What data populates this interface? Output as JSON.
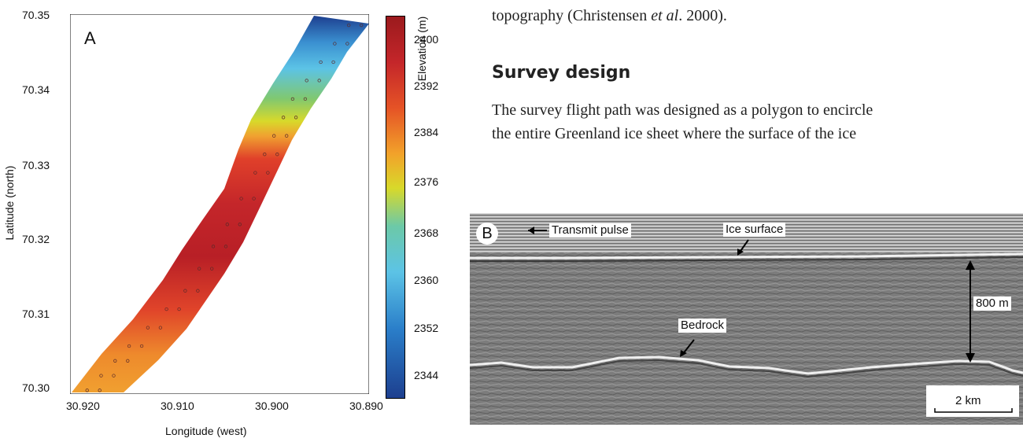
{
  "figure": {
    "panel_a": {
      "label": "A",
      "xlabel": "Longitude (west)",
      "ylabel": "Latitude (north)",
      "x_ticks": [
        "30.920",
        "30.910",
        "30.900",
        "30.890"
      ],
      "y_ticks": [
        "70.35",
        "70.34",
        "70.33",
        "70.32",
        "70.31",
        "70.30"
      ],
      "colorbar_label": "Elevation (m)",
      "colorbar_ticks": [
        "2400",
        "2392",
        "2384",
        "2376",
        "2368",
        "2360",
        "2352",
        "2344"
      ]
    },
    "panel_b": {
      "label": "B",
      "transmit_pulse": "Transmit pulse",
      "ice_surface": "Ice surface",
      "bedrock": "Bedrock",
      "thickness": "800 m",
      "scale": "2 km"
    }
  },
  "text": {
    "top_line": "topography (Christensen et al. 2000).",
    "top_line_pre": "topography (Christensen ",
    "top_line_em": "et al",
    "top_line_post": ". 2000).",
    "heading": "Survey design",
    "para_line1": "The survey flight path was designed as a polygon to encircle",
    "para_line2": "the entire Greenland ice sheet where the surface of the ice"
  },
  "chart_data": {
    "type": "scatter",
    "xlabel": "Longitude (west)",
    "ylabel": "Latitude (north)",
    "xlim": [
      30.922,
      30.89
    ],
    "ylim": [
      70.2985,
      70.35
    ],
    "colorbar_range": [
      2340,
      2405
    ],
    "points": [
      {
        "x": 30.9195,
        "y": 70.299,
        "elev": 2381
      },
      {
        "x": 30.918,
        "y": 70.301,
        "elev": 2385
      },
      {
        "x": 30.9165,
        "y": 70.303,
        "elev": 2388
      },
      {
        "x": 30.915,
        "y": 70.305,
        "elev": 2391
      },
      {
        "x": 30.913,
        "y": 70.3075,
        "elev": 2394
      },
      {
        "x": 30.911,
        "y": 70.31,
        "elev": 2397
      },
      {
        "x": 30.909,
        "y": 70.3125,
        "elev": 2400
      },
      {
        "x": 30.9075,
        "y": 70.3155,
        "elev": 2402
      },
      {
        "x": 30.906,
        "y": 70.3185,
        "elev": 2402
      },
      {
        "x": 30.9045,
        "y": 70.3215,
        "elev": 2400
      },
      {
        "x": 30.903,
        "y": 70.325,
        "elev": 2398
      },
      {
        "x": 30.9015,
        "y": 70.3285,
        "elev": 2395
      },
      {
        "x": 30.9005,
        "y": 70.331,
        "elev": 2389
      },
      {
        "x": 30.8995,
        "y": 70.3335,
        "elev": 2382
      },
      {
        "x": 30.8985,
        "y": 70.336,
        "elev": 2373
      },
      {
        "x": 30.8975,
        "y": 70.3385,
        "elev": 2365
      },
      {
        "x": 30.896,
        "y": 70.341,
        "elev": 2360
      },
      {
        "x": 30.8945,
        "y": 70.3435,
        "elev": 2357
      },
      {
        "x": 30.893,
        "y": 70.346,
        "elev": 2353
      },
      {
        "x": 30.8915,
        "y": 70.3485,
        "elev": 2347
      }
    ]
  },
  "colors": {
    "colormap": [
      "#1d3f8f",
      "#2a7ec9",
      "#5cc3e6",
      "#6cc9a8",
      "#d8d92a",
      "#f2a22a",
      "#e55326",
      "#c4262a",
      "#9b1a1d"
    ],
    "radar_bg": "#7a7a7a"
  }
}
